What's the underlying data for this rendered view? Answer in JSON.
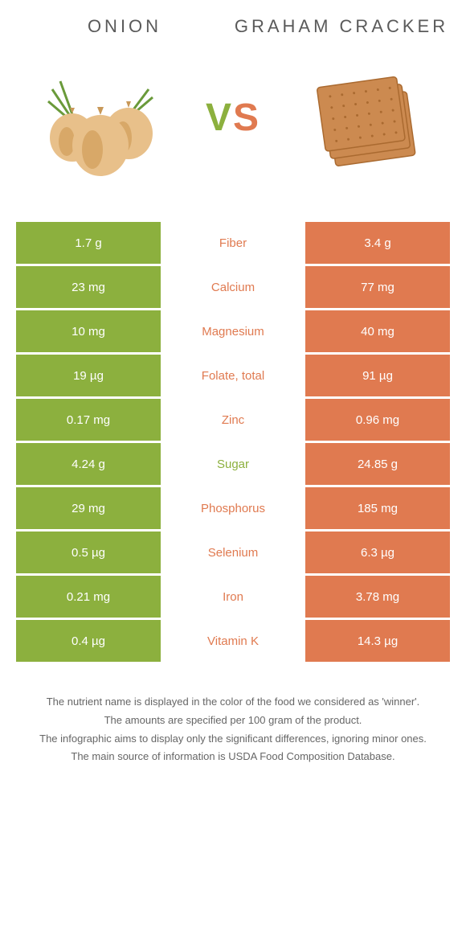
{
  "header": {
    "left": "Onion",
    "right": "Graham cracker"
  },
  "vs": {
    "v": "V",
    "s": "S"
  },
  "colors": {
    "left_bg": "#8cb03e",
    "right_bg": "#e07a50",
    "mid_green": "#8cb03e",
    "mid_orange": "#e07a50"
  },
  "rows": [
    {
      "left": "1.7 g",
      "label": "Fiber",
      "right": "3.4 g",
      "winner": "right"
    },
    {
      "left": "23 mg",
      "label": "Calcium",
      "right": "77 mg",
      "winner": "right"
    },
    {
      "left": "10 mg",
      "label": "Magnesium",
      "right": "40 mg",
      "winner": "right"
    },
    {
      "left": "19 µg",
      "label": "Folate, total",
      "right": "91 µg",
      "winner": "right"
    },
    {
      "left": "0.17 mg",
      "label": "Zinc",
      "right": "0.96 mg",
      "winner": "right"
    },
    {
      "left": "4.24 g",
      "label": "Sugar",
      "right": "24.85 g",
      "winner": "left"
    },
    {
      "left": "29 mg",
      "label": "Phosphorus",
      "right": "185 mg",
      "winner": "right"
    },
    {
      "left": "0.5 µg",
      "label": "Selenium",
      "right": "6.3 µg",
      "winner": "right"
    },
    {
      "left": "0.21 mg",
      "label": "Iron",
      "right": "3.78 mg",
      "winner": "right"
    },
    {
      "left": "0.4 µg",
      "label": "Vitamin K",
      "right": "14.3 µg",
      "winner": "right"
    }
  ],
  "footer": [
    "The nutrient name is displayed in the color of the food we considered as 'winner'.",
    "The amounts are specified per 100 gram of the product.",
    "The infographic aims to display only the significant differences, ignoring minor ones.",
    "The main source of information is USDA Food Composition Database."
  ]
}
